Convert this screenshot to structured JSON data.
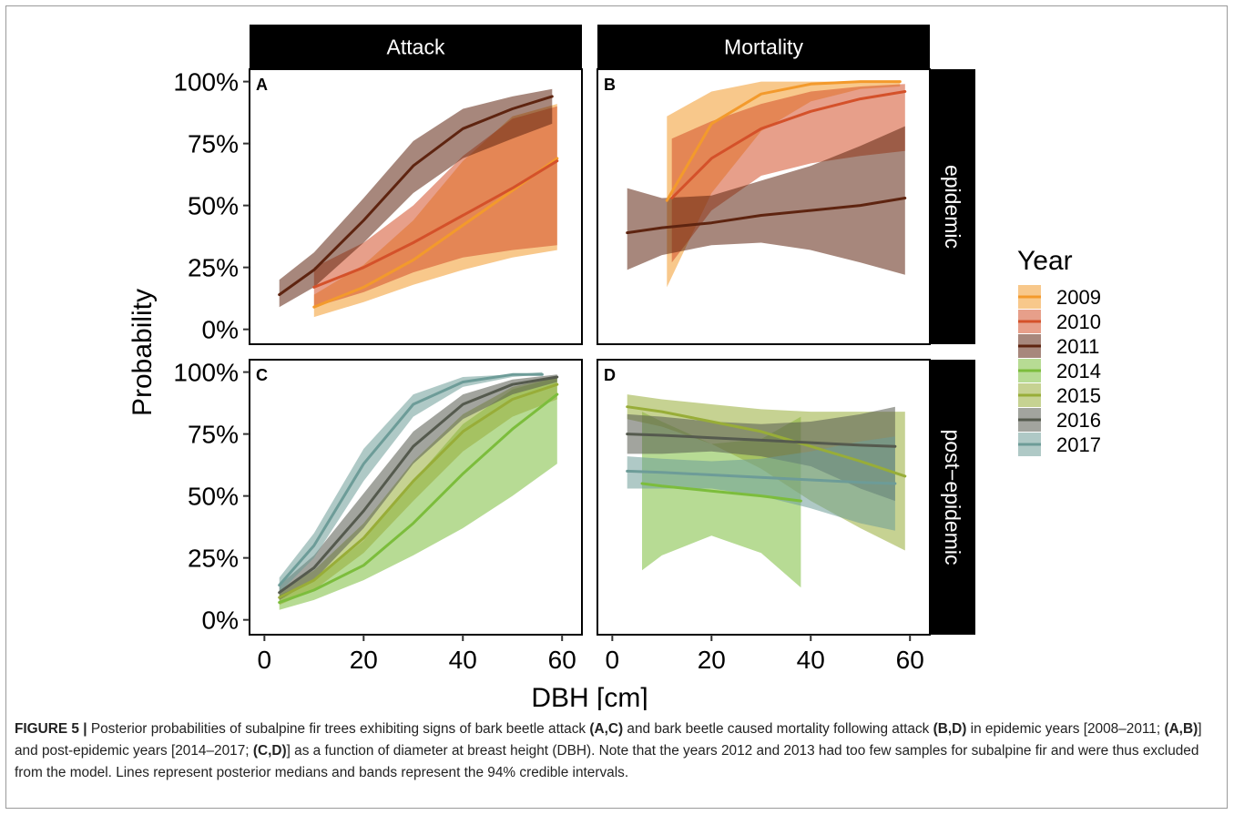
{
  "chart_data": {
    "type": "line",
    "xlabel": "DBH [cm]",
    "ylabel": "Probability",
    "xlim": [
      -3,
      64
    ],
    "ylim": [
      -0.06,
      1.05
    ],
    "x_ticks": [
      0,
      20,
      40,
      60
    ],
    "y_ticks": [
      "0%",
      "25%",
      "50%",
      "75%",
      "100%"
    ],
    "y_tick_values": [
      0,
      0.25,
      0.5,
      0.75,
      1.0
    ],
    "columns": [
      "Attack",
      "Mortality"
    ],
    "rows": [
      "epidemic",
      "post−epidemic"
    ],
    "legend": {
      "title": "Year",
      "placement": "right",
      "entries": [
        {
          "label": "2009",
          "color": "#f39a2c"
        },
        {
          "label": "2010",
          "color": "#d4512a"
        },
        {
          "label": "2011",
          "color": "#5e2410"
        },
        {
          "label": "2014",
          "color": "#7cbd3c"
        },
        {
          "label": "2015",
          "color": "#98ad38"
        },
        {
          "label": "2016",
          "color": "#555a4e"
        },
        {
          "label": "2017",
          "color": "#6d9c98"
        }
      ]
    },
    "panels": [
      {
        "tag": "A",
        "column": "Attack",
        "row": "epidemic",
        "series": [
          {
            "year": "2009",
            "x": [
              10,
              20,
              30,
              40,
              50,
              59
            ],
            "median": [
              0.09,
              0.17,
              0.28,
              0.42,
              0.56,
              0.69
            ],
            "lower": [
              0.05,
              0.11,
              0.18,
              0.24,
              0.29,
              0.32
            ],
            "upper": [
              0.14,
              0.26,
              0.44,
              0.68,
              0.86,
              0.91
            ]
          },
          {
            "year": "2010",
            "x": [
              10,
              20,
              30,
              40,
              50,
              59
            ],
            "median": [
              0.17,
              0.25,
              0.35,
              0.46,
              0.57,
              0.68
            ],
            "lower": [
              0.09,
              0.15,
              0.23,
              0.29,
              0.32,
              0.34
            ],
            "upper": [
              0.25,
              0.35,
              0.5,
              0.7,
              0.85,
              0.9
            ]
          },
          {
            "year": "2011",
            "x": [
              3,
              10,
              20,
              30,
              40,
              50,
              58
            ],
            "median": [
              0.14,
              0.24,
              0.44,
              0.66,
              0.81,
              0.89,
              0.94
            ],
            "lower": [
              0.09,
              0.17,
              0.35,
              0.55,
              0.69,
              0.77,
              0.83
            ],
            "upper": [
              0.2,
              0.31,
              0.53,
              0.76,
              0.89,
              0.94,
              0.97
            ]
          }
        ]
      },
      {
        "tag": "B",
        "column": "Mortality",
        "row": "epidemic",
        "series": [
          {
            "year": "2009",
            "x": [
              11,
              20,
              30,
              40,
              50,
              58
            ],
            "median": [
              0.52,
              0.83,
              0.95,
              0.99,
              1.0,
              1.0
            ],
            "lower": [
              0.17,
              0.55,
              0.8,
              0.92,
              0.97,
              0.98
            ],
            "upper": [
              0.86,
              0.96,
              1.0,
              1.0,
              1.0,
              1.0
            ]
          },
          {
            "year": "2010",
            "x": [
              12,
              20,
              30,
              40,
              50,
              59
            ],
            "median": [
              0.53,
              0.69,
              0.81,
              0.88,
              0.93,
              0.96
            ],
            "lower": [
              0.27,
              0.48,
              0.62,
              0.67,
              0.7,
              0.72
            ],
            "upper": [
              0.77,
              0.84,
              0.91,
              0.96,
              0.98,
              0.99
            ]
          },
          {
            "year": "2011",
            "x": [
              3,
              10,
              20,
              30,
              40,
              50,
              59
            ],
            "median": [
              0.39,
              0.41,
              0.43,
              0.46,
              0.48,
              0.5,
              0.53
            ],
            "lower": [
              0.24,
              0.3,
              0.34,
              0.35,
              0.32,
              0.27,
              0.22
            ],
            "upper": [
              0.57,
              0.53,
              0.54,
              0.6,
              0.66,
              0.74,
              0.82
            ]
          }
        ]
      },
      {
        "tag": "C",
        "column": "Attack",
        "row": "post−epidemic",
        "series": [
          {
            "year": "2014",
            "x": [
              3,
              10,
              20,
              30,
              40,
              50,
              59
            ],
            "median": [
              0.07,
              0.12,
              0.22,
              0.39,
              0.59,
              0.77,
              0.91
            ],
            "lower": [
              0.04,
              0.08,
              0.16,
              0.26,
              0.37,
              0.5,
              0.63
            ],
            "upper": [
              0.1,
              0.16,
              0.32,
              0.56,
              0.79,
              0.93,
              0.98
            ]
          },
          {
            "year": "2015",
            "x": [
              3,
              10,
              20,
              30,
              40,
              50,
              59
            ],
            "median": [
              0.09,
              0.16,
              0.33,
              0.56,
              0.76,
              0.89,
              0.95
            ],
            "lower": [
              0.06,
              0.12,
              0.27,
              0.48,
              0.68,
              0.82,
              0.89
            ],
            "upper": [
              0.12,
              0.2,
              0.39,
              0.64,
              0.83,
              0.94,
              0.98
            ]
          },
          {
            "year": "2016",
            "x": [
              3,
              10,
              20,
              30,
              40,
              50,
              59
            ],
            "median": [
              0.11,
              0.21,
              0.44,
              0.7,
              0.87,
              0.95,
              0.98
            ],
            "lower": [
              0.08,
              0.16,
              0.37,
              0.63,
              0.81,
              0.91,
              0.96
            ],
            "upper": [
              0.14,
              0.26,
              0.51,
              0.76,
              0.91,
              0.97,
              0.99
            ]
          },
          {
            "year": "2017",
            "x": [
              3,
              10,
              20,
              30,
              40,
              50,
              56
            ],
            "median": [
              0.14,
              0.3,
              0.63,
              0.87,
              0.96,
              0.99,
              0.99
            ],
            "lower": [
              0.11,
              0.25,
              0.56,
              0.82,
              0.94,
              0.98,
              0.99
            ],
            "upper": [
              0.17,
              0.35,
              0.69,
              0.91,
              0.98,
              0.99,
              1.0
            ]
          }
        ]
      },
      {
        "tag": "D",
        "column": "Mortality",
        "row": "post−epidemic",
        "series": [
          {
            "year": "2014",
            "x": [
              6,
              10,
              20,
              30,
              38
            ],
            "median": [
              0.55,
              0.54,
              0.52,
              0.5,
              0.48
            ],
            "lower": [
              0.2,
              0.26,
              0.34,
              0.27,
              0.13
            ],
            "upper": [
              0.84,
              0.8,
              0.71,
              0.73,
              0.82
            ]
          },
          {
            "year": "2015",
            "x": [
              3,
              10,
              20,
              30,
              40,
              50,
              59
            ],
            "median": [
              0.86,
              0.84,
              0.8,
              0.76,
              0.7,
              0.64,
              0.58
            ],
            "lower": [
              0.81,
              0.78,
              0.71,
              0.61,
              0.48,
              0.37,
              0.28
            ],
            "upper": [
              0.91,
              0.89,
              0.87,
              0.85,
              0.84,
              0.84,
              0.84
            ]
          },
          {
            "year": "2016",
            "x": [
              3,
              10,
              20,
              30,
              40,
              50,
              57
            ],
            "median": [
              0.75,
              0.745,
              0.735,
              0.725,
              0.715,
              0.705,
              0.7
            ],
            "lower": [
              0.67,
              0.67,
              0.68,
              0.66,
              0.62,
              0.53,
              0.48
            ],
            "upper": [
              0.83,
              0.82,
              0.8,
              0.79,
              0.8,
              0.83,
              0.86
            ]
          },
          {
            "year": "2017",
            "x": [
              3,
              10,
              20,
              30,
              40,
              50,
              57
            ],
            "median": [
              0.6,
              0.595,
              0.585,
              0.575,
              0.565,
              0.555,
              0.55
            ],
            "lower": [
              0.53,
              0.53,
              0.53,
              0.5,
              0.45,
              0.39,
              0.36
            ],
            "upper": [
              0.66,
              0.65,
              0.64,
              0.65,
              0.68,
              0.72,
              0.74
            ]
          }
        ]
      }
    ]
  },
  "caption": {
    "label": "FIGURE 5 |",
    "parts": [
      " Posterior probabilities of subalpine fir trees exhibiting signs of bark beetle attack ",
      "(A,C)",
      " and bark beetle caused mortality following attack ",
      "(B,D)",
      " in epidemic years [2008–2011; ",
      "(A,B)",
      "] and post-epidemic years [2014–2017; ",
      "(C,D)",
      "] as a function of diameter at breast height (DBH). Note that the years 2012 and 2013 had too few samples for subalpine fir and were thus excluded from the model. Lines represent posterior medians and bands represent the 94% credible intervals."
    ]
  }
}
